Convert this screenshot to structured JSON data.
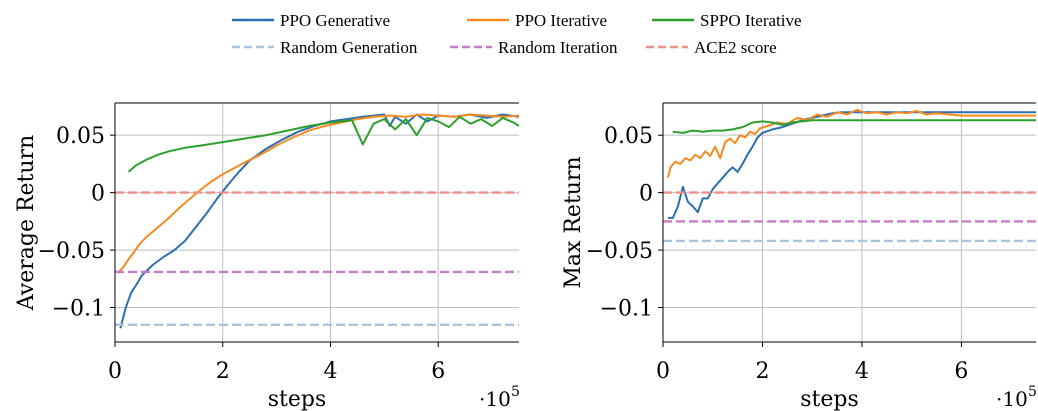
{
  "legend": {
    "entries": [
      {
        "name": "PPO Generative",
        "color": "#2c6fb0",
        "dash": "solid"
      },
      {
        "name": "PPO Iterative",
        "color": "#f58a1f",
        "dash": "solid"
      },
      {
        "name": "SPPO Iterative",
        "color": "#2ca02c",
        "dash": "solid"
      },
      {
        "name": "Random Generation",
        "color": "#a6c4de",
        "dash": "dashed"
      },
      {
        "name": "Random Iteration",
        "color": "#c77cc9",
        "dash": "dashed"
      },
      {
        "name": "ACE2 score",
        "color": "#ee8f8a",
        "dash": "dashed"
      }
    ]
  },
  "chart_data": [
    {
      "type": "line",
      "xlabel": "steps",
      "ylabel": "Average Return",
      "x_multiplier": "·10",
      "x_multiplier_exp": "5",
      "xlim": [
        0,
        7.5
      ],
      "ylim": [
        -0.13,
        0.078
      ],
      "xticks": [
        0,
        2,
        4,
        6
      ],
      "xtick_labels": [
        "0",
        "2",
        "4",
        "6"
      ],
      "yticks": [
        0.05,
        0,
        -0.05,
        -0.1
      ],
      "ytick_labels": [
        "0.05",
        "0",
        "−0.05",
        "−0.1"
      ],
      "grid": true,
      "series": [
        {
          "name": "PPO Generative",
          "color": "#2c6fb0",
          "dash": "solid",
          "x": [
            0.1,
            0.2,
            0.3,
            0.4,
            0.5,
            0.7,
            0.9,
            1.1,
            1.3,
            1.5,
            1.7,
            1.9,
            2.1,
            2.3,
            2.5,
            2.8,
            3.1,
            3.4,
            3.7,
            4.0,
            4.3,
            4.6,
            4.8,
            5.0,
            5.1,
            5.2,
            5.4,
            5.6,
            5.8,
            6.0,
            6.3,
            6.6,
            6.9,
            7.2,
            7.5
          ],
          "y": [
            -0.118,
            -0.1,
            -0.087,
            -0.08,
            -0.072,
            -0.063,
            -0.056,
            -0.05,
            -0.042,
            -0.03,
            -0.018,
            -0.005,
            0.007,
            0.018,
            0.028,
            0.038,
            0.046,
            0.053,
            0.058,
            0.062,
            0.064,
            0.066,
            0.067,
            0.068,
            0.058,
            0.066,
            0.06,
            0.068,
            0.062,
            0.067,
            0.066,
            0.068,
            0.065,
            0.068,
            0.066
          ]
        },
        {
          "name": "PPO Iterative",
          "color": "#f58a1f",
          "dash": "solid",
          "x": [
            0.05,
            0.15,
            0.25,
            0.35,
            0.45,
            0.6,
            0.8,
            1.0,
            1.2,
            1.4,
            1.6,
            1.8,
            2.0,
            2.2,
            2.4,
            2.7,
            3.0,
            3.3,
            3.6,
            3.9,
            4.2,
            4.5,
            4.8,
            5.1,
            5.4,
            5.7,
            6.0,
            6.3,
            6.6,
            6.9,
            7.2,
            7.5
          ],
          "y": [
            -0.07,
            -0.065,
            -0.058,
            -0.052,
            -0.045,
            -0.038,
            -0.03,
            -0.022,
            -0.013,
            -0.005,
            0.003,
            0.01,
            0.016,
            0.021,
            0.026,
            0.033,
            0.041,
            0.048,
            0.054,
            0.058,
            0.061,
            0.064,
            0.066,
            0.067,
            0.066,
            0.068,
            0.067,
            0.066,
            0.068,
            0.067,
            0.066,
            0.067
          ]
        },
        {
          "name": "SPPO Iterative",
          "color": "#2ca02c",
          "dash": "solid",
          "x": [
            0.25,
            0.4,
            0.6,
            0.8,
            1.0,
            1.3,
            1.6,
            2.0,
            2.4,
            2.8,
            3.2,
            3.6,
            4.0,
            4.4,
            4.6,
            4.8,
            5.0,
            5.2,
            5.4,
            5.6,
            5.8,
            6.0,
            6.2,
            6.4,
            6.6,
            6.8,
            7.0,
            7.2,
            7.4,
            7.5
          ],
          "y": [
            0.018,
            0.024,
            0.029,
            0.033,
            0.036,
            0.039,
            0.041,
            0.044,
            0.047,
            0.05,
            0.054,
            0.058,
            0.061,
            0.063,
            0.042,
            0.06,
            0.064,
            0.055,
            0.064,
            0.05,
            0.065,
            0.062,
            0.057,
            0.066,
            0.06,
            0.064,
            0.058,
            0.065,
            0.061,
            0.058
          ]
        },
        {
          "name": "Random Generation",
          "color": "#a6c4de",
          "dash": "dashed",
          "x": [
            0,
            7.5
          ],
          "y": [
            -0.115,
            -0.115
          ]
        },
        {
          "name": "Random Iteration",
          "color": "#c77cc9",
          "dash": "dashed",
          "x": [
            0,
            7.5
          ],
          "y": [
            -0.069,
            -0.069
          ]
        },
        {
          "name": "ACE2 score",
          "color": "#ee8f8a",
          "dash": "dashed",
          "x": [
            0,
            7.5
          ],
          "y": [
            0.0,
            0.0
          ]
        }
      ]
    },
    {
      "type": "line",
      "xlabel": "steps",
      "ylabel": "Max Return",
      "x_multiplier": "·10",
      "x_multiplier_exp": "5",
      "xlim": [
        0,
        7.5
      ],
      "ylim": [
        -0.13,
        0.078
      ],
      "xticks": [
        0,
        2,
        4,
        6
      ],
      "xtick_labels": [
        "0",
        "2",
        "4",
        "6"
      ],
      "yticks": [
        0.05,
        0,
        -0.05,
        -0.1
      ],
      "ytick_labels": [
        "0.05",
        "0",
        "−0.05",
        "−0.1"
      ],
      "grid": true,
      "series": [
        {
          "name": "PPO Generative",
          "color": "#2c6fb0",
          "dash": "solid",
          "x": [
            0.1,
            0.2,
            0.3,
            0.4,
            0.5,
            0.6,
            0.7,
            0.8,
            0.9,
            1.0,
            1.1,
            1.2,
            1.3,
            1.4,
            1.5,
            1.6,
            1.7,
            1.8,
            1.9,
            2.0,
            2.2,
            2.4,
            2.6,
            2.8,
            3.0,
            3.2,
            3.4,
            3.6,
            3.8,
            4.0,
            4.5,
            5.0,
            6.0,
            7.5
          ],
          "y": [
            -0.022,
            -0.022,
            -0.012,
            0.005,
            -0.008,
            -0.012,
            -0.017,
            -0.005,
            -0.005,
            0.003,
            0.008,
            0.013,
            0.018,
            0.022,
            0.018,
            0.025,
            0.033,
            0.04,
            0.048,
            0.052,
            0.055,
            0.057,
            0.06,
            0.063,
            0.065,
            0.067,
            0.069,
            0.07,
            0.07,
            0.07,
            0.07,
            0.07,
            0.07,
            0.07
          ]
        },
        {
          "name": "PPO Iterative",
          "color": "#f58a1f",
          "dash": "solid",
          "x": [
            0.1,
            0.15,
            0.25,
            0.35,
            0.45,
            0.55,
            0.65,
            0.75,
            0.85,
            0.95,
            1.05,
            1.15,
            1.25,
            1.35,
            1.45,
            1.55,
            1.65,
            1.75,
            1.85,
            1.95,
            2.1,
            2.3,
            2.5,
            2.7,
            2.9,
            3.1,
            3.3,
            3.5,
            3.7,
            3.9,
            4.1,
            4.3,
            4.5,
            4.7,
            4.9,
            5.1,
            5.3,
            5.5,
            6.0,
            6.5,
            7.0,
            7.5
          ],
          "y": [
            0.013,
            0.022,
            0.027,
            0.025,
            0.03,
            0.028,
            0.033,
            0.03,
            0.036,
            0.032,
            0.04,
            0.03,
            0.044,
            0.047,
            0.043,
            0.05,
            0.048,
            0.053,
            0.051,
            0.056,
            0.058,
            0.061,
            0.06,
            0.065,
            0.063,
            0.068,
            0.066,
            0.07,
            0.068,
            0.072,
            0.069,
            0.07,
            0.068,
            0.07,
            0.069,
            0.071,
            0.068,
            0.069,
            0.067,
            0.067,
            0.067,
            0.067
          ]
        },
        {
          "name": "SPPO Iterative",
          "color": "#2ca02c",
          "dash": "solid",
          "x": [
            0.2,
            0.4,
            0.6,
            0.8,
            1.0,
            1.2,
            1.4,
            1.6,
            1.8,
            2.0,
            2.2,
            2.4,
            2.6,
            2.8,
            3.0,
            3.2,
            3.5,
            4.0,
            5.0,
            6.0,
            7.0,
            7.5
          ],
          "y": [
            0.053,
            0.052,
            0.054,
            0.053,
            0.054,
            0.054,
            0.055,
            0.057,
            0.061,
            0.062,
            0.061,
            0.059,
            0.061,
            0.062,
            0.063,
            0.063,
            0.063,
            0.063,
            0.063,
            0.063,
            0.063,
            0.063
          ]
        },
        {
          "name": "Random Generation",
          "color": "#a6c4de",
          "dash": "dashed",
          "x": [
            0,
            7.5
          ],
          "y": [
            -0.042,
            -0.042
          ]
        },
        {
          "name": "Random Iteration",
          "color": "#c77cc9",
          "dash": "dashed",
          "x": [
            0,
            7.5
          ],
          "y": [
            -0.025,
            -0.025
          ]
        },
        {
          "name": "ACE2 score",
          "color": "#ee8f8a",
          "dash": "dashed",
          "x": [
            0,
            7.5
          ],
          "y": [
            0.0,
            0.0
          ]
        }
      ]
    }
  ]
}
